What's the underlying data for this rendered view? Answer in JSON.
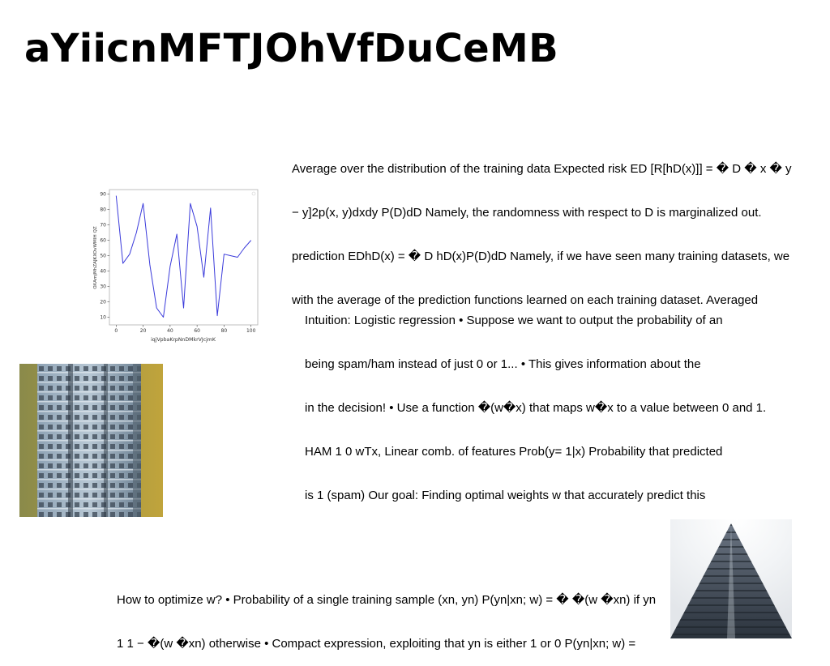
{
  "page_title": "aYiicnMFTJOhVfDuCeMB",
  "paragraphs": [
    {
      "lines": [
        "Average over the distribution of the training data Expected risk ED [R[hD(x)]] = � D � x � y",
        "− y]2p(x, y)dxdy P(D)dD Namely, the randomness with respect to D is marginalized out.",
        "prediction EDhD(x) = � D hD(x)P(D)dD Namely, if we have seen many training datasets, we",
        "with the average of the prediction functions learned on each training dataset. Averaged"
      ]
    },
    {
      "lines": [
        "Intuition: Logistic regression • Suppose we want to output the probability of an",
        "being spam/ham instead of just 0 or 1... • This gives information about the",
        "in the decision! • Use a function �(w�x) that maps w�x to a value between 0 and 1.",
        "HAM 1 0 wTx, Linear comb. of features Prob(y= 1|x) Probability that predicted",
        "is 1 (spam) Our goal: Finding optimal weights w that accurately predict this"
      ]
    },
    {
      "lines": [
        "How to optimize w? • Probability of a single training sample (xn, yn) P(yn|xn; w) = � �(w �xn) if yn",
        "1 1 − �(w �xn) otherwise • Compact expression, exploiting that yn is either 1 or 0 P(yn|xn; w) ="
      ]
    }
  ],
  "chart_data": {
    "type": "line",
    "title": "",
    "xlabel": "iqjVpbaKrpNnDMkrVJcjmK",
    "ylabel": "OXAmjMhZAJKXOvWMIH QZ",
    "xlim": [
      -5,
      105
    ],
    "ylim": [
      5,
      93
    ],
    "xticks": [
      0,
      20,
      40,
      60,
      80,
      100
    ],
    "yticks": [
      10,
      20,
      30,
      40,
      50,
      60,
      70,
      80,
      90
    ],
    "line_color": "#3b3bdb",
    "series": [
      {
        "x": [
          0,
          5,
          10,
          15,
          20,
          25,
          30,
          35,
          40,
          45,
          50,
          55,
          60,
          65,
          70,
          75,
          80,
          85,
          90,
          95,
          100
        ],
        "values": [
          89,
          45,
          51,
          65,
          84,
          44,
          16,
          10,
          43,
          64,
          16,
          84,
          69,
          36,
          81,
          11,
          51,
          50,
          49,
          55,
          60
        ]
      }
    ]
  },
  "images": {
    "building": {
      "description_icon": "apartment-building-photo"
    },
    "tower": {
      "description_icon": "pagoda-tower-photo"
    }
  }
}
